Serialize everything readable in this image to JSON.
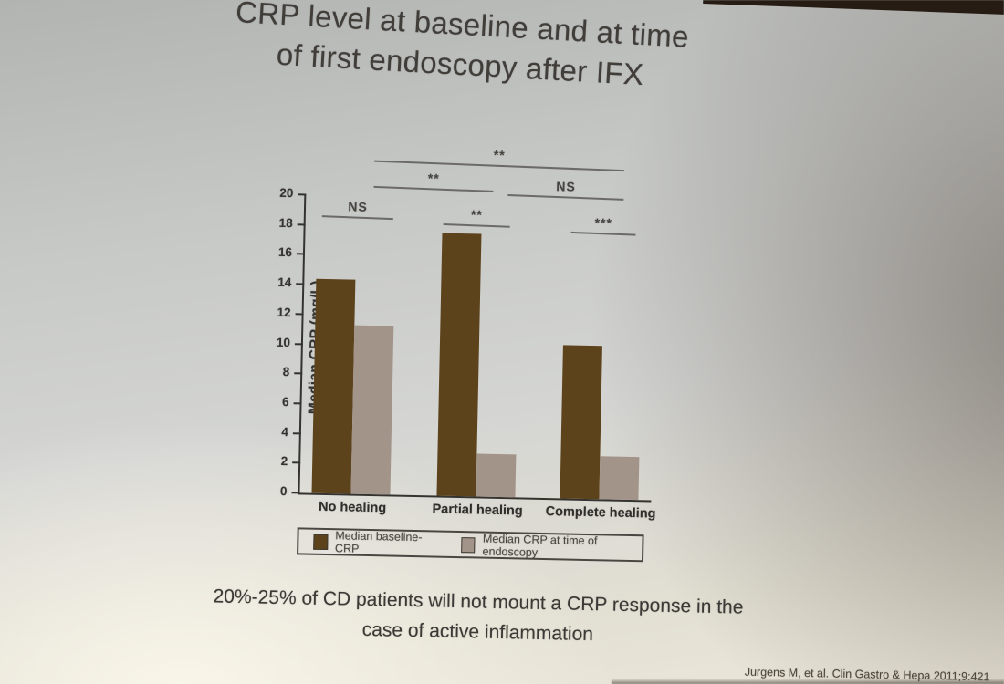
{
  "slide": {
    "title_line1": "CRP level at baseline and at time",
    "title_line2": "of first endoscopy after IFX",
    "footer_line1": "20%-25% of CD patients will not mount a CRP response in the",
    "footer_line2": "case of active inflammation",
    "citation": "Jurgens M, et al. Clin Gastro & Hepa 2011;9:421"
  },
  "chart_data": {
    "type": "bar",
    "title": "",
    "categories": [
      "No healing",
      "Partial healing",
      "Complete healing"
    ],
    "series": [
      {
        "name": "Median baseline-CRP",
        "color": "#5d431c",
        "values": [
          14.4,
          17.6,
          10.3
        ]
      },
      {
        "name": "Median CRP at time of endoscopy",
        "color": "#a3948a",
        "values": [
          11.3,
          2.9,
          2.9
        ]
      }
    ],
    "xlabel": "",
    "ylabel": "Median CRP (mg/L)",
    "ylim": [
      0,
      20
    ],
    "ytick_step": 2,
    "grid": false,
    "legend_position": "bottom",
    "annotations": [
      {
        "label": "**",
        "compare": "No healing vs Complete healing (baseline CRP)"
      },
      {
        "label": "**",
        "compare": "No healing vs Partial healing (baseline CRP)"
      },
      {
        "label": "NS",
        "compare": "Partial healing vs Complete healing (baseline CRP)"
      },
      {
        "label": "NS",
        "compare": "No healing: baseline vs endoscopy"
      },
      {
        "label": "**",
        "compare": "Partial healing: baseline vs endoscopy"
      },
      {
        "label": "***",
        "compare": "Complete healing: baseline vs endoscopy"
      }
    ]
  }
}
